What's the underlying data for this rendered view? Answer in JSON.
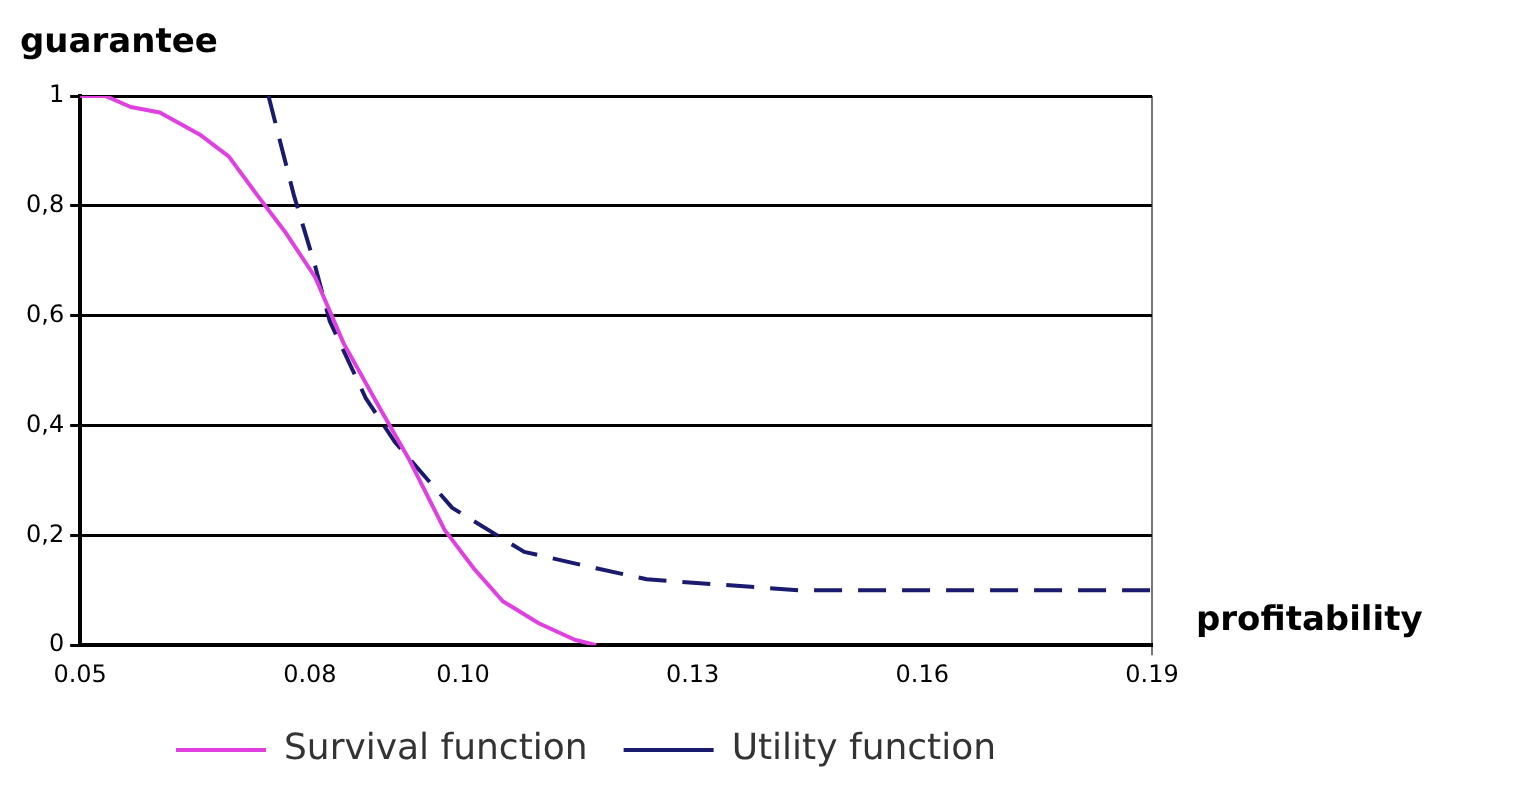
{
  "chart_data": {
    "type": "line",
    "xlabel": "profitability",
    "ylabel": "guarantee",
    "xlim": [
      0.05,
      0.19
    ],
    "ylim": [
      0,
      1
    ],
    "xticks": [
      0.05,
      0.08,
      {
        "value": 0.1,
        "label": "0.10"
      },
      0.13,
      0.16,
      0.19
    ],
    "yticks": [
      0,
      {
        "value": 0.2,
        "label": "0,2"
      },
      {
        "value": 0.4,
        "label": "0,4"
      },
      {
        "value": 0.6,
        "label": "0,6"
      },
      {
        "value": 0.8,
        "label": "0,8"
      },
      1
    ],
    "grid": "y",
    "legend": "bottom",
    "marker": "none",
    "series": [
      {
        "name": "Survival function",
        "color": "#e040e0",
        "line_style": "solid",
        "x": [
          0.05,
          0.0533,
          0.0566,
          0.0604,
          0.0656,
          0.0694,
          0.0731,
          0.0769,
          0.0807,
          0.0844,
          0.0892,
          0.0929,
          0.0976,
          0.1014,
          0.1052,
          0.1099,
          0.1146,
          0.1174
        ],
        "values": [
          1.0,
          1.0,
          0.98,
          0.97,
          0.93,
          0.89,
          0.82,
          0.75,
          0.67,
          0.55,
          0.43,
          0.34,
          0.21,
          0.14,
          0.08,
          0.04,
          0.01,
          0
        ]
      },
      {
        "name": "Utility function",
        "color": "#1a1a6e",
        "line_style": "dashed",
        "x": [
          0.0746,
          0.0779,
          0.0807,
          0.0826,
          0.0873,
          0.0911,
          0.0986,
          0.108,
          0.1174,
          0.124,
          0.1438,
          0.19
        ],
        "values": [
          1.0,
          0.82,
          0.69,
          0.59,
          0.45,
          0.37,
          0.25,
          0.17,
          0.14,
          0.12,
          0.1,
          0.1
        ]
      }
    ]
  }
}
